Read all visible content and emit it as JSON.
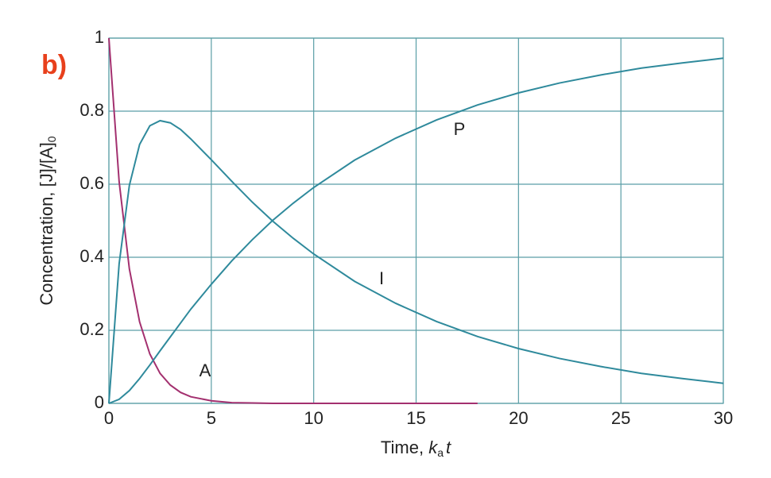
{
  "chart_data": {
    "type": "line",
    "panel_label": "b)",
    "ylabel": {
      "text": "Concentration, [J]/[A]",
      "sub": "0"
    },
    "xlabel": {
      "text": "Time, ",
      "var": "k",
      "sub": "a",
      "var2": "t"
    },
    "x": [
      0,
      0.5,
      1,
      1.5,
      2,
      2.5,
      3,
      3.5,
      4,
      5,
      6,
      7,
      8,
      9,
      10,
      12,
      14,
      16,
      18,
      20,
      22,
      24,
      26,
      28,
      30
    ],
    "series": [
      {
        "name": "A",
        "color": "#a3306f",
        "values": [
          1,
          0.607,
          0.368,
          0.223,
          0.135,
          0.082,
          0.05,
          0.03,
          0.018,
          0.007,
          0.002,
          0.001,
          0,
          0,
          0,
          0,
          0,
          0,
          0,
          null,
          null,
          null,
          null,
          null,
          null
        ]
      },
      {
        "name": "I",
        "color": "#2f8a9c",
        "values": [
          0,
          0.382,
          0.597,
          0.709,
          0.76,
          0.774,
          0.768,
          0.75,
          0.724,
          0.667,
          0.608,
          0.551,
          0.499,
          0.452,
          0.409,
          0.334,
          0.274,
          0.224,
          0.183,
          0.15,
          0.123,
          0.101,
          0.082,
          0.068,
          0.055
        ]
      },
      {
        "name": "P",
        "color": "#2f8a9c",
        "values": [
          0,
          0.011,
          0.035,
          0.068,
          0.105,
          0.144,
          0.182,
          0.22,
          0.258,
          0.326,
          0.39,
          0.448,
          0.501,
          0.548,
          0.591,
          0.666,
          0.726,
          0.776,
          0.817,
          0.85,
          0.877,
          0.899,
          0.918,
          0.932,
          0.945
        ]
      }
    ],
    "xlim": [
      0,
      30
    ],
    "xticks": [
      0,
      5,
      10,
      15,
      20,
      25,
      30
    ],
    "ylim": [
      0,
      1
    ],
    "yticks": [
      0,
      0.2,
      0.4,
      0.6,
      0.8,
      1
    ],
    "grid": true
  }
}
